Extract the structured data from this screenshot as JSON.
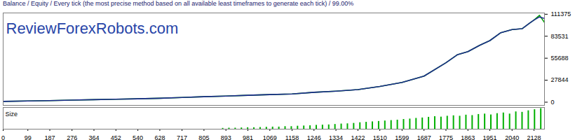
{
  "chart_data": [
    {
      "type": "line",
      "title": "Balance / Equity / Every tick (the most precise method based on all available least timeframes to generate each tick) / 99.00%",
      "annotation": "ReviewForexRobots.com",
      "x": [
        0,
        99,
        187,
        276,
        364,
        452,
        540,
        628,
        717,
        805,
        893,
        981,
        1069,
        1158,
        1246,
        1334,
        1422,
        1510,
        1599,
        1687,
        1775,
        1820,
        1863,
        1910,
        1951,
        1995,
        2040,
        2080,
        2110,
        2128,
        2150,
        2170
      ],
      "series": [
        {
          "name": "Balance",
          "color": "#1f2a90",
          "values": [
            1000,
            1500,
            2000,
            2600,
            3200,
            3700,
            4300,
            5000,
            6000,
            7000,
            7800,
            8700,
            9600,
            10400,
            12500,
            14000,
            16000,
            20000,
            25000,
            33000,
            50000,
            60000,
            64000,
            72000,
            78000,
            88000,
            92000,
            93000,
            100000,
            104000,
            108000,
            106000
          ]
        },
        {
          "name": "Equity",
          "color": "#00a000",
          "values": [
            1000,
            1500,
            2000,
            2600,
            3200,
            3700,
            4300,
            5000,
            6000,
            7000,
            7800,
            8700,
            9600,
            10400,
            12500,
            14000,
            16000,
            20000,
            25000,
            33000,
            50000,
            60000,
            64000,
            72000,
            78000,
            88000,
            92000,
            93000,
            100000,
            104000,
            110000,
            101000
          ]
        }
      ],
      "xlim": [
        0,
        2170
      ],
      "ylim": [
        -4000,
        113000
      ],
      "yticks": [
        0,
        27844,
        55688,
        83531,
        111375
      ],
      "tick_labels": "y"
    },
    {
      "type": "bar",
      "title": "Size",
      "x": [
        880,
        905,
        930,
        955,
        980,
        1005,
        1030,
        1055,
        1080,
        1105,
        1130,
        1155,
        1180,
        1205,
        1230,
        1255,
        1280,
        1305,
        1330,
        1355,
        1380,
        1405,
        1430,
        1455,
        1480,
        1505,
        1530,
        1555,
        1580,
        1605,
        1630,
        1655,
        1680,
        1705,
        1730,
        1755,
        1780,
        1805,
        1830,
        1855,
        1880,
        1905,
        1930,
        1955,
        1980,
        2005,
        2030,
        2055,
        2080,
        2105,
        2130,
        2155
      ],
      "values": [
        0.04,
        0.05,
        0.05,
        0.06,
        0.07,
        0.07,
        0.08,
        0.09,
        0.1,
        0.1,
        0.12,
        0.12,
        0.14,
        0.15,
        0.16,
        0.18,
        0.19,
        0.2,
        0.22,
        0.24,
        0.25,
        0.27,
        0.3,
        0.32,
        0.34,
        0.36,
        0.38,
        0.4,
        0.42,
        0.45,
        0.47,
        0.5,
        0.52,
        0.55,
        0.58,
        0.56,
        0.6,
        0.62,
        0.6,
        0.65,
        0.63,
        0.68,
        0.7,
        0.66,
        0.72,
        0.75,
        0.7,
        0.8,
        0.78,
        0.85,
        0.9,
        0.95
      ],
      "color": "#00b000",
      "xlim": [
        0,
        2170
      ],
      "xticks": [
        0,
        99,
        187,
        276,
        364,
        452,
        540,
        628,
        717,
        805,
        893,
        981,
        1069,
        1158,
        1246,
        1334,
        1422,
        1510,
        1599,
        1687,
        1775,
        1863,
        1951,
        2040,
        2128
      ],
      "ylim": [
        0,
        1
      ],
      "tick_labels": "x"
    }
  ]
}
